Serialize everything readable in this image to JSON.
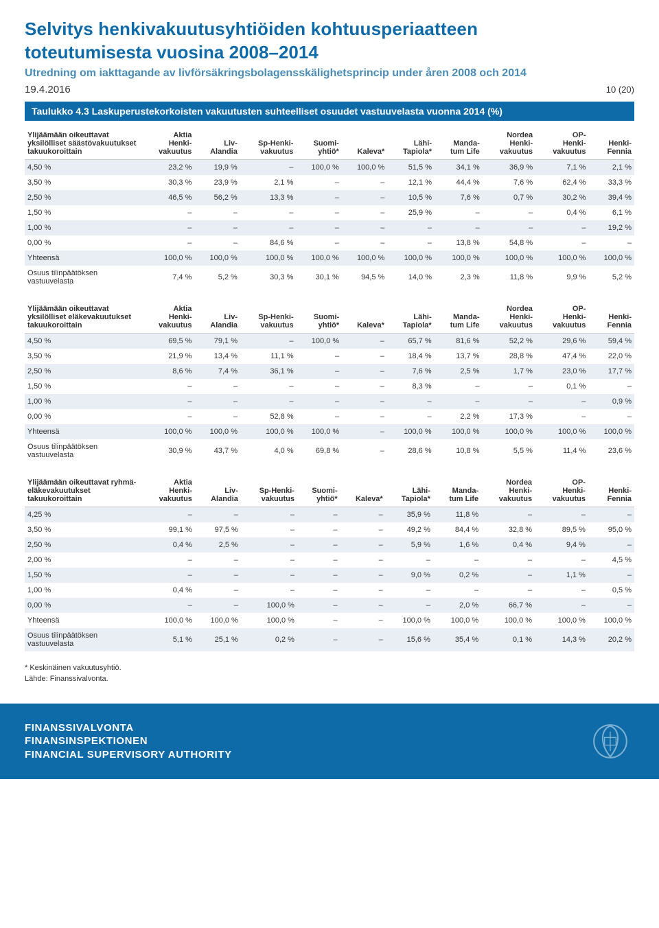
{
  "header": {
    "title_line1": "Selvitys henkivakuutusyhtiöiden kohtuusperiaatteen",
    "title_line2": "toteutumisesta vuosina 2008–2014",
    "subtitle": "Utredning om iakttagande av livförsäkringsbolagensskälighetsprincip under åren 2008 och 2014",
    "date": "19.4.2016",
    "page_count": "10 (20)"
  },
  "tab_header": "Taulukko 4.3 Laskuperustekorkoisten vakuutusten suhteelliset osuudet vastuuvelasta vuonna 2014 (%)",
  "col_headers": [
    "Aktia Henki-vakuutus",
    "Liv-Alandia",
    "Sp-Henki-vakuutus",
    "Suomi-yhtiö*",
    "Kaleva*",
    "Lähi-Tapiola*",
    "Manda-tum Life",
    "Nordea Henki-vakuutus",
    "OP-Henki-vakuutus",
    "Henki-Fennia"
  ],
  "tables": [
    {
      "row_header": "Ylijäämään oikeuttavat yksilölliset säästövakuutukset takuukoroittain",
      "rows": [
        {
          "label": "4,50 %",
          "cells": [
            "23,2 %",
            "19,9 %",
            "–",
            "100,0 %",
            "100,0 %",
            "51,5 %",
            "34,1 %",
            "36,9 %",
            "7,1 %",
            "2,1 %"
          ],
          "band": true
        },
        {
          "label": "3,50 %",
          "cells": [
            "30,3 %",
            "23,9 %",
            "2,1 %",
            "–",
            "–",
            "12,1 %",
            "44,4 %",
            "7,6 %",
            "62,4 %",
            "33,3 %"
          ],
          "band": false
        },
        {
          "label": "2,50 %",
          "cells": [
            "46,5 %",
            "56,2 %",
            "13,3 %",
            "–",
            "–",
            "10,5 %",
            "7,6 %",
            "0,7 %",
            "30,2 %",
            "39,4 %"
          ],
          "band": true
        },
        {
          "label": "1,50 %",
          "cells": [
            "–",
            "–",
            "–",
            "–",
            "–",
            "25,9 %",
            "–",
            "–",
            "0,4 %",
            "6,1 %"
          ],
          "band": false
        },
        {
          "label": "1,00 %",
          "cells": [
            "–",
            "–",
            "–",
            "–",
            "–",
            "–",
            "–",
            "–",
            "–",
            "19,2 %"
          ],
          "band": true
        },
        {
          "label": "0,00 %",
          "cells": [
            "–",
            "–",
            "84,6 %",
            "–",
            "–",
            "–",
            "13,8 %",
            "54,8 %",
            "–",
            "–"
          ],
          "band": false
        },
        {
          "label": "Yhteensä",
          "cells": [
            "100,0 %",
            "100,0 %",
            "100,0 %",
            "100,0 %",
            "100,0 %",
            "100,0 %",
            "100,0 %",
            "100,0 %",
            "100,0 %",
            "100,0 %"
          ],
          "band": true
        },
        {
          "label": "Osuus tilinpäätöksen vastuuvelasta",
          "cells": [
            "7,4 %",
            "5,2 %",
            "30,3 %",
            "30,1 %",
            "94,5 %",
            "14,0 %",
            "2,3 %",
            "11,8 %",
            "9,9 %",
            "5,2 %"
          ],
          "band": false
        }
      ]
    },
    {
      "row_header": "Ylijäämään oikeuttavat yksilölliset eläkevakuutukset takuukoroittain",
      "rows": [
        {
          "label": "4,50 %",
          "cells": [
            "69,5 %",
            "79,1 %",
            "–",
            "100,0 %",
            "–",
            "65,7 %",
            "81,6 %",
            "52,2 %",
            "29,6 %",
            "59,4 %"
          ],
          "band": true
        },
        {
          "label": "3,50 %",
          "cells": [
            "21,9 %",
            "13,4 %",
            "11,1 %",
            "–",
            "–",
            "18,4 %",
            "13,7 %",
            "28,8 %",
            "47,4 %",
            "22,0 %"
          ],
          "band": false
        },
        {
          "label": "2,50 %",
          "cells": [
            "8,6 %",
            "7,4 %",
            "36,1 %",
            "–",
            "–",
            "7,6 %",
            "2,5 %",
            "1,7 %",
            "23,0 %",
            "17,7 %"
          ],
          "band": true
        },
        {
          "label": "1,50 %",
          "cells": [
            "–",
            "–",
            "–",
            "–",
            "–",
            "8,3 %",
            "–",
            "–",
            "0,1 %",
            "–"
          ],
          "band": false
        },
        {
          "label": "1,00 %",
          "cells": [
            "–",
            "–",
            "–",
            "–",
            "–",
            "–",
            "–",
            "–",
            "–",
            "0,9 %"
          ],
          "band": true
        },
        {
          "label": "0,00 %",
          "cells": [
            "–",
            "–",
            "52,8 %",
            "–",
            "–",
            "–",
            "2,2 %",
            "17,3 %",
            "–",
            "–"
          ],
          "band": false
        },
        {
          "label": "Yhteensä",
          "cells": [
            "100,0 %",
            "100,0 %",
            "100,0 %",
            "100,0 %",
            "–",
            "100,0 %",
            "100,0 %",
            "100,0 %",
            "100,0 %",
            "100,0 %"
          ],
          "band": true
        },
        {
          "label": "Osuus tilinpäätöksen vastuuvelasta",
          "cells": [
            "30,9 %",
            "43,7 %",
            "4,0 %",
            "69,8 %",
            "–",
            "28,6 %",
            "10,8 %",
            "5,5 %",
            "11,4 %",
            "23,6 %"
          ],
          "band": false
        }
      ]
    },
    {
      "row_header": "Ylijäämään oikeuttavat ryhmä- eläkevakuutukset takuukoroittain",
      "rows": [
        {
          "label": "4,25 %",
          "cells": [
            "–",
            "–",
            "–",
            "–",
            "–",
            "35,9 %",
            "11,8 %",
            "–",
            "–",
            "–"
          ],
          "band": true
        },
        {
          "label": "3,50 %",
          "cells": [
            "99,1 %",
            "97,5 %",
            "–",
            "–",
            "–",
            "49,2 %",
            "84,4 %",
            "32,8 %",
            "89,5 %",
            "95,0 %"
          ],
          "band": false
        },
        {
          "label": "2,50 %",
          "cells": [
            "0,4 %",
            "2,5 %",
            "–",
            "–",
            "–",
            "5,9 %",
            "1,6 %",
            "0,4 %",
            "9,4 %",
            "–"
          ],
          "band": true
        },
        {
          "label": "2,00 %",
          "cells": [
            "–",
            "–",
            "–",
            "–",
            "–",
            "–",
            "–",
            "–",
            "–",
            "4,5 %"
          ],
          "band": false
        },
        {
          "label": "1,50 %",
          "cells": [
            "–",
            "–",
            "–",
            "–",
            "–",
            "9,0 %",
            "0,2 %",
            "–",
            "1,1 %",
            "–"
          ],
          "band": true
        },
        {
          "label": "1,00 %",
          "cells": [
            "0,4 %",
            "–",
            "–",
            "–",
            "–",
            "–",
            "–",
            "–",
            "–",
            "0,5 %"
          ],
          "band": false
        },
        {
          "label": "0,00 %",
          "cells": [
            "–",
            "–",
            "100,0 %",
            "–",
            "–",
            "–",
            "2,0 %",
            "66,7 %",
            "–",
            "–"
          ],
          "band": true
        },
        {
          "label": "Yhteensä",
          "cells": [
            "100,0 %",
            "100,0 %",
            "100,0 %",
            "–",
            "–",
            "100,0 %",
            "100,0 %",
            "100,0 %",
            "100,0 %",
            "100,0 %"
          ],
          "band": false
        },
        {
          "label": "Osuus tilinpäätöksen vastuuvelasta",
          "cells": [
            "5,1 %",
            "25,1 %",
            "0,2 %",
            "–",
            "–",
            "15,6 %",
            "35,4 %",
            "0,1 %",
            "14,3 %",
            "20,2 %"
          ],
          "band": true
        }
      ]
    }
  ],
  "footnote1": "* Keskinäinen vakuutusyhtiö.",
  "footnote2": "Lähde: Finanssivalvonta.",
  "footer": {
    "line1": "FINANSSIVALVONTA",
    "line2": "FINANSINSPEKTIONEN",
    "line3": "FINANCIAL SUPERVISORY AUTHORITY"
  },
  "colors": {
    "brand_blue": "#0f6aa8",
    "light_blue": "#4a8cb5",
    "band": "#e8eef4",
    "text": "#333333"
  }
}
